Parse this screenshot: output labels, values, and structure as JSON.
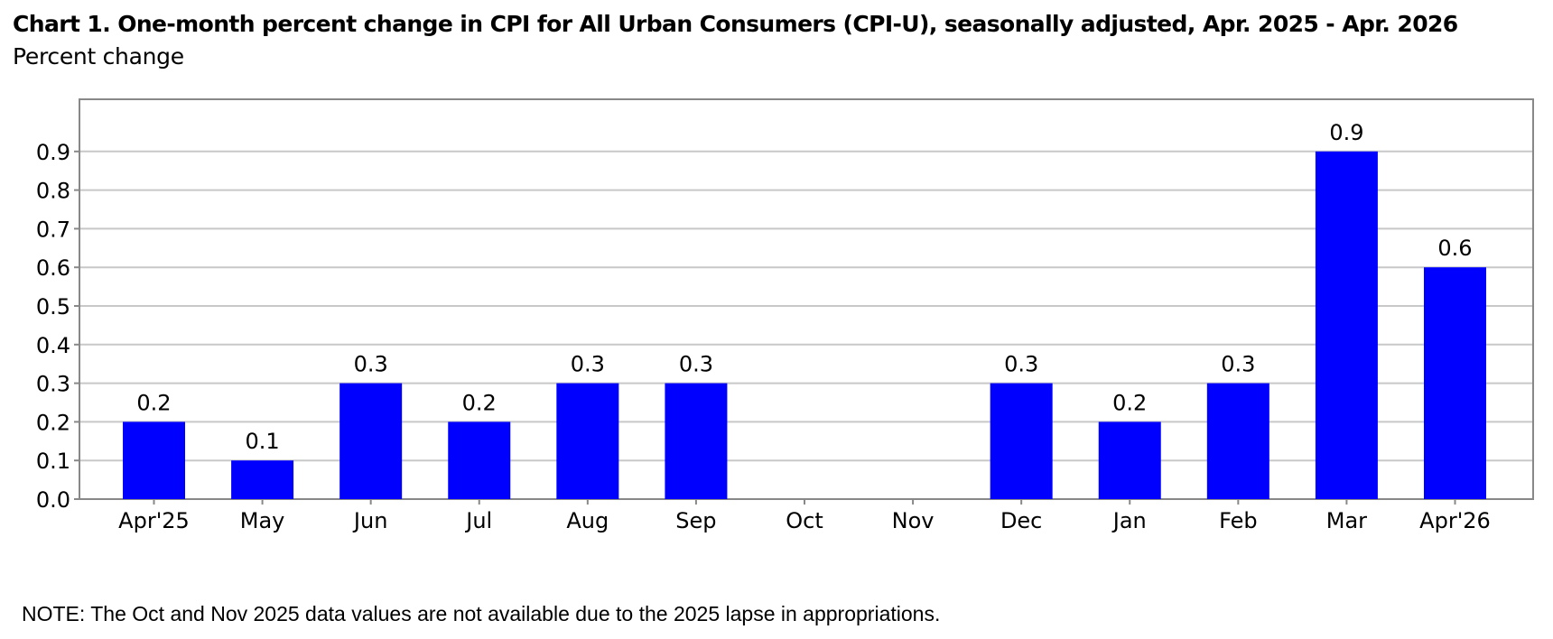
{
  "chart_data": {
    "type": "bar",
    "title": "Chart 1. One-month percent change in CPI for All Urban Consumers (CPI-U), seasonally adjusted, Apr. 2025 - Apr. 2026",
    "subtitle": "Percent change",
    "ylabel": "Percent change",
    "xlabel": "",
    "ylim": [
      0,
      1.0
    ],
    "yticks": [
      "0.0",
      "0.1",
      "0.2",
      "0.3",
      "0.4",
      "0.5",
      "0.6",
      "0.7",
      "0.8",
      "0.9"
    ],
    "categories": [
      "Apr'25",
      "May",
      "Jun",
      "Jul",
      "Aug",
      "Sep",
      "Oct",
      "Nov",
      "Dec",
      "Jan",
      "Feb",
      "Mar",
      "Apr'26"
    ],
    "values": [
      0.2,
      0.1,
      0.3,
      0.2,
      0.3,
      0.3,
      null,
      null,
      0.3,
      0.2,
      0.3,
      0.9,
      0.6
    ],
    "data_labels": [
      "0.2",
      "0.1",
      "0.3",
      "0.2",
      "0.3",
      "0.3",
      "",
      "",
      "0.3",
      "0.2",
      "0.3",
      "0.9",
      "0.6"
    ],
    "bar_color": "#0000ff",
    "grid": true,
    "legend": "none"
  },
  "note": "NOTE: The Oct and Nov 2025 data values are not available due to the 2025 lapse in appropriations."
}
